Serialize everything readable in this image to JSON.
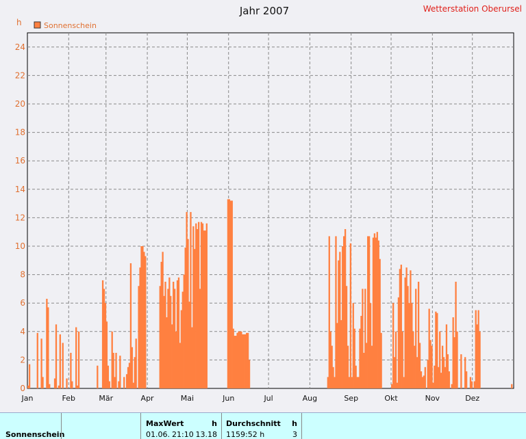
{
  "header": {
    "title": "Jahr 2007",
    "station": "Wetterstation Oberursel",
    "unit": "h"
  },
  "colors": {
    "bar": "#ff8040",
    "grid": "#888888",
    "plot_bg": "#f0f0f4"
  },
  "chart_data": {
    "type": "bar",
    "title": "Jahr 2007",
    "ylabel": "h",
    "ylim": [
      0,
      25
    ],
    "yticks": [
      0,
      2,
      4,
      6,
      8,
      10,
      12,
      14,
      16,
      18,
      20,
      22,
      24
    ],
    "xticks": [
      "Jan",
      "Feb",
      "Mär",
      "Apr",
      "Mai",
      "Jun",
      "Jul",
      "Aug",
      "Sep",
      "Okt",
      "Nov",
      "Dez"
    ],
    "grid": true,
    "legend_position": "top-left",
    "series": [
      {
        "name": "Sonnenschein",
        "color": "#ff8040",
        "x_unit": "day_of_year",
        "values": [
          0.2,
          1.7,
          0.0,
          0.0,
          0.0,
          0.0,
          0.0,
          3.9,
          0.0,
          0.0,
          3.5,
          0.8,
          0.0,
          0.0,
          6.3,
          5.7,
          0.3,
          0.0,
          0.0,
          0.0,
          0.7,
          4.5,
          0.0,
          0.2,
          3.8,
          0.0,
          3.2,
          0.0,
          0.0,
          0.7,
          0.0,
          0.0,
          2.5,
          0.5,
          0.0,
          0.0,
          4.3,
          0.2,
          4.0,
          0.0,
          0.0,
          0.0,
          0.0,
          0.0,
          0.0,
          0.0,
          0.0,
          0.0,
          0.0,
          0.0,
          0.0,
          0.0,
          1.6,
          0.0,
          0.0,
          0.0,
          7.6,
          7.0,
          6.0,
          4.7,
          1.6,
          0.5,
          0.0,
          4.0,
          2.5,
          0.8,
          2.5,
          0.0,
          0.5,
          2.3,
          0.0,
          0.0,
          0.8,
          0.0,
          1.0,
          1.5,
          1.8,
          8.8,
          2.9,
          0.4,
          2.2,
          3.5,
          0.0,
          7.2,
          8.5,
          10.0,
          10.0,
          9.6,
          9.3,
          8.9,
          0.0,
          0.0,
          0.0,
          0.0,
          0.0,
          0.0,
          0.0,
          0.0,
          0.0,
          8.8,
          0.0,
          0.0,
          0.0,
          0.0,
          5.2,
          0.0,
          0.0,
          0.0,
          0.0,
          0.0,
          0.0,
          0.0,
          0.0,
          0.0,
          0.0,
          0.0,
          0.0,
          0.0,
          0.0,
          0.0,
          0.0,
          0.0,
          0.0,
          0.0,
          0.0,
          0.0,
          0.0,
          0.0,
          0.0,
          0.0,
          0.0,
          0.0,
          0.0,
          0.0,
          0.0,
          0.0,
          0.0,
          0.0,
          0.0,
          0.0,
          0.0,
          0.0,
          0.0,
          0.0,
          0.0,
          0.0,
          0.0,
          0.0,
          0.0,
          0.0,
          0.0,
          0.0,
          0.0,
          0.0,
          0.0,
          0.0,
          0.0,
          0.0,
          0.0,
          0.0,
          0.0,
          0.0,
          0.0,
          0.0,
          0.0,
          0.0,
          0.0,
          0.0,
          0.0,
          0.0,
          0.0,
          0.0,
          0.0,
          0.0,
          0.0,
          0.0,
          0.0,
          0.0,
          0.0,
          0.0,
          0.0,
          0.0,
          0.0,
          0.0,
          0.0,
          0.0,
          0.0,
          0.0,
          0.0,
          0.0,
          0.0,
          0.0,
          0.0,
          0.0,
          0.0,
          0.0,
          0.0,
          0.0,
          0.0,
          0.0,
          0.0,
          0.0,
          0.0,
          0.0,
          0.0,
          0.0,
          0.0,
          0.0,
          0.0,
          0.0,
          0.0,
          0.0,
          0.0,
          0.0,
          0.0,
          0.0,
          0.0,
          0.0,
          0.0,
          0.0,
          0.0,
          0.0,
          0.0,
          0.0,
          0.0,
          0.0,
          0.0,
          0.0,
          0.0,
          0.0,
          0.0,
          0.0,
          0.0,
          0.0,
          0.0,
          0.0,
          0.0,
          0.0,
          0.0,
          0.0,
          0.0,
          0.0,
          0.0,
          0.0,
          0.0,
          0.0,
          0.0,
          0.0,
          0.0,
          0.0,
          0.0,
          0.0,
          0.0,
          0.0,
          0.0,
          0.0,
          0.0,
          0.0,
          0.0,
          0.0,
          0.0,
          0.0,
          0.0,
          0.0,
          0.0,
          0.0,
          0.0,
          0.0,
          0.0,
          0.0,
          0.0,
          0.0,
          0.0,
          0.0,
          0.0,
          0.0,
          0.0,
          0.0,
          0.0,
          0.0,
          0.0,
          0.0,
          0.0,
          0.0,
          0.0,
          0.0,
          0.0,
          0.0,
          0.0,
          0.0,
          0.0,
          0.0,
          0.0,
          0.0,
          0.0,
          0.0,
          0.0,
          0.0,
          0.0,
          0.0,
          0.0,
          0.0,
          0.0,
          0.0,
          0.0,
          0.0,
          0.0,
          0.0,
          0.0,
          0.0,
          0.0,
          0.0,
          0.0,
          0.0,
          0.0,
          0.0,
          0.0,
          0.0,
          0.0,
          0.0,
          0.0,
          0.0,
          0.0,
          0.0,
          0.0,
          0.0,
          0.0,
          0.0,
          0.0,
          0.0,
          0.0,
          0.0,
          0.0,
          0.0,
          0.0,
          0.0,
          0.0,
          0.0,
          0.0,
          0.0,
          0.0,
          0.0,
          0.0,
          0.0,
          0.0,
          0.0,
          0.0,
          0.0,
          0.0,
          0.0,
          0.0,
          0.0,
          0.0,
          0.0,
          0.0,
          0.0,
          0.0,
          0.0,
          0.0,
          0.0,
          0.0,
          0.0,
          0.0,
          0.3
        ],
        "segments": [
          {
            "start": 89,
            "values": [
              0.0,
              0.0,
              0.0,
              0.0,
              0.0,
              0.0,
              0.0,
              0.0,
              0.0,
              0.0,
              7.2,
              8.9,
              9.6,
              6.5,
              7.5,
              5.0,
              7.0,
              7.8,
              6.5,
              4.5,
              7.5,
              7.0,
              4.0,
              7.6,
              7.8,
              3.2,
              5.5,
              6.8,
              8.0,
              9.9,
              12.4,
              10.5,
              6.1,
              12.4,
              4.3,
              11.4,
              9.8,
              11.6,
              11.2,
              11.7,
              7.0,
              11.7,
              11.6,
              11.1,
              11.1,
              11.6
            ]
          },
          {
            "start": 150,
            "values": [
              13.3,
              13.3,
              13.2,
              13.2,
              4.2,
              3.7,
              3.7,
              3.9,
              4.0,
              4.0,
              4.0,
              3.8,
              3.8,
              3.8,
              3.9,
              3.9,
              2.0
            ]
          },
          {
            "start": 225,
            "values": [
              0.8,
              10.7,
              4.0,
              3.0,
              1.5,
              0.8,
              10.7,
              4.6,
              9.0,
              9.6,
              4.8,
              10.0,
              10.7,
              11.2,
              7.2,
              3.0,
              0.8,
              10.2,
              0.8,
              6.0,
              4.2,
              1.6,
              0.8,
              0.8,
              4.2,
              5.1,
              7.0,
              2.5,
              7.0,
              3.2,
              10.7,
              10.7,
              6.0,
              3.0,
              10.6,
              10.9,
              10.6,
              11.0,
              10.4,
              9.1,
              3.9
            ]
          },
          {
            "start": 273,
            "values": [
              0.3,
              6.0,
              2.2,
              4.0,
              0.4,
              6.4,
              8.4,
              8.7,
              4.0,
              0.8,
              7.8,
              8.5,
              7.2,
              6.0,
              8.3,
              6.0,
              4.0,
              3.0,
              7.0,
              2.2,
              7.5,
              3.2,
              1.2,
              0.8,
              0.9,
              1.5,
              0.0,
              2.0,
              5.6,
              3.4,
              3.0,
              0.4,
              1.6,
              5.4,
              5.3,
              1.5,
              4.0,
              1.1,
              3.0,
              2.2,
              1.5,
              4.5,
              2.4,
              1.2,
              0.0,
              0.3,
              5.0,
              3.6,
              7.5,
              4.0,
              0.0,
              0.0,
              2.4,
              0.0,
              0.0,
              2.2,
              1.2,
              0.0,
              0.0,
              0.8,
              0.5,
              0.0,
              0.5,
              5.5,
              4.5,
              5.5,
              4.0,
              0.0,
              0.0,
              0.0,
              0.0,
              0.0
            ]
          }
        ]
      }
    ]
  },
  "stats": {
    "series_label": "Sonnenschein",
    "max_label": "MaxWert",
    "max_unit": "h",
    "max_date": "01.06.",
    "max_time": "21:10",
    "max_value": "13.18",
    "avg_label": "Durchschnitt",
    "avg_unit": "h",
    "avg_total": "1159:52 h",
    "avg_value": "3"
  }
}
